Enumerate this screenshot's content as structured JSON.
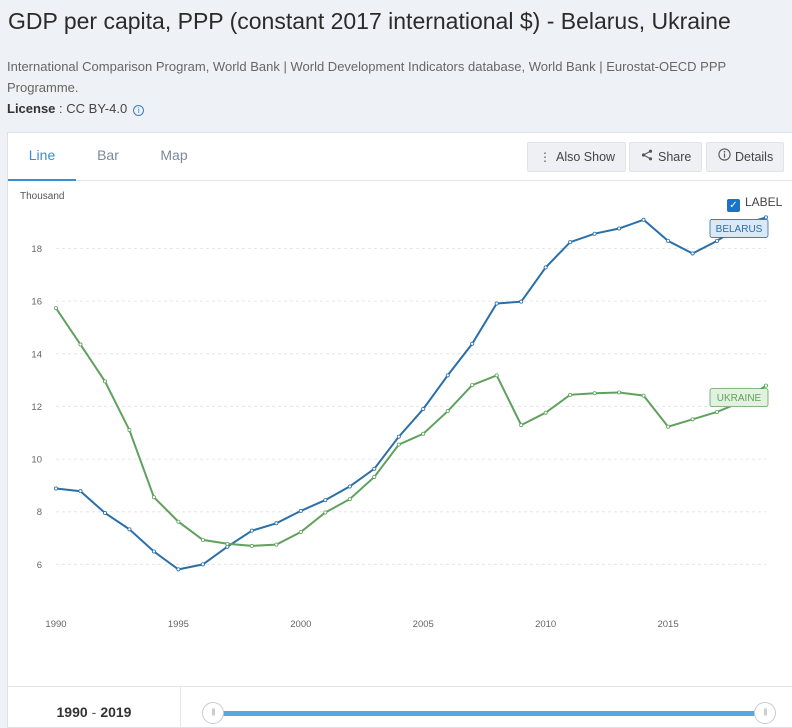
{
  "header": {
    "title": "GDP per capita, PPP (constant 2017 international $) - Belarus, Ukraine",
    "sources": "International Comparison Program, World Bank | World Development Indicators database, World Bank | Eurostat-OECD PPP Programme.",
    "license_label": "License",
    "license_sep": " : ",
    "license_value": "CC BY-4.0",
    "info_glyph": "i"
  },
  "tabs": [
    {
      "label": "Line",
      "active": true
    },
    {
      "label": "Bar",
      "active": false
    },
    {
      "label": "Map",
      "active": false
    }
  ],
  "toolbar": {
    "also_show": "Also Show",
    "share": "Share",
    "details": "Details"
  },
  "label_toggle": {
    "label": "LABEL",
    "checked": true
  },
  "footer": {
    "range_start": "1990",
    "range_sep": "-",
    "range_end": "2019"
  },
  "chart_data": {
    "type": "line",
    "title": "GDP per capita, PPP (constant 2017 international $) - Belarus, Ukraine",
    "ylabel": "Thousand",
    "xlabel": "",
    "xlim": [
      1990,
      2019
    ],
    "ylim": [
      4,
      19.5
    ],
    "yticks": [
      6,
      8,
      10,
      12,
      14,
      16,
      18
    ],
    "xticks": [
      1990,
      1995,
      2000,
      2005,
      2010,
      2015
    ],
    "grid": true,
    "legend": "end-labels",
    "x": [
      1990,
      1991,
      1992,
      1993,
      1994,
      1995,
      1996,
      1997,
      1998,
      1999,
      2000,
      2001,
      2002,
      2003,
      2004,
      2005,
      2006,
      2007,
      2008,
      2009,
      2010,
      2011,
      2012,
      2013,
      2014,
      2015,
      2016,
      2017,
      2018,
      2019
    ],
    "series": [
      {
        "name": "BELARUS",
        "color": "#2a6fa8",
        "values": [
          8.88,
          8.78,
          7.95,
          7.33,
          6.49,
          5.81,
          6.0,
          6.67,
          7.28,
          7.56,
          8.03,
          8.44,
          8.96,
          9.63,
          10.85,
          11.9,
          13.18,
          14.38,
          15.91,
          15.98,
          17.28,
          18.24,
          18.56,
          18.76,
          19.09,
          18.29,
          17.81,
          18.29,
          18.89,
          19.18
        ]
      },
      {
        "name": "UKRAINE",
        "color": "#5fa15d",
        "values": [
          15.73,
          14.35,
          12.95,
          11.1,
          8.55,
          7.62,
          6.93,
          6.78,
          6.7,
          6.75,
          7.23,
          7.97,
          8.48,
          9.32,
          10.55,
          10.96,
          11.82,
          12.81,
          13.18,
          11.29,
          11.76,
          12.44,
          12.5,
          12.53,
          12.41,
          11.23,
          11.51,
          11.79,
          12.17,
          12.79
        ]
      }
    ]
  }
}
